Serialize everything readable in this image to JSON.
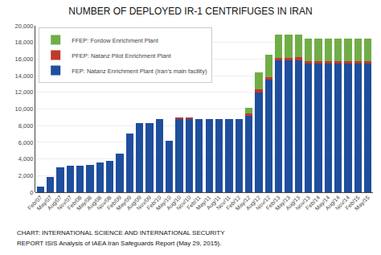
{
  "chart_data": {
    "type": "bar",
    "stacked": true,
    "title": "NUMBER OF DEPLOYED IR-1 CENTRIFUGES IN IRAN",
    "categories": [
      "Feb/07",
      "May/07",
      "Aug/07",
      "Nov/07",
      "Feb/08",
      "May/08",
      "Aug/08",
      "Nov/08",
      "Feb/09",
      "May/09",
      "Aug/09",
      "Nov/09",
      "Feb/10",
      "May/10",
      "Aug/10",
      "Nov/10",
      "Feb/11",
      "May/11",
      "Aug/11",
      "Nov/11",
      "Feb/12",
      "May/12",
      "Aug/12",
      "Nov/12",
      "Feb/13",
      "May/13",
      "Aug/13",
      "Nov/13",
      "Feb/14",
      "May/14",
      "Aug/14",
      "Nov/14",
      "Feb/15",
      "May/15"
    ],
    "series": [
      {
        "name": "FEP: Natanz Enrichment Plant (Iran’s main facility)",
        "color": "#1F4E9C",
        "values": [
          656,
          1820,
          2952,
          3148,
          3148,
          3240,
          3572,
          3792,
          4592,
          7052,
          8308,
          8308,
          8808,
          6208,
          8808,
          8808,
          8808,
          8808,
          8808,
          8808,
          8808,
          9156,
          12000,
          13528,
          15856,
          15856,
          15864,
          15416,
          15416,
          15416,
          15416,
          15416,
          15416,
          15416
        ]
      },
      {
        "name": "PFEP: Natanz Pilot Enrichment Plant",
        "color": "#C0392B",
        "values": [
          0,
          0,
          0,
          0,
          0,
          0,
          0,
          0,
          0,
          0,
          0,
          0,
          0,
          0,
          164,
          164,
          0,
          0,
          0,
          0,
          0,
          328,
          328,
          328,
          328,
          328,
          328,
          328,
          328,
          328,
          328,
          328,
          328,
          328
        ]
      },
      {
        "name": "FFEP: Fordow Enrichment Plant",
        "color": "#70AD47",
        "values": [
          0,
          0,
          0,
          0,
          0,
          0,
          0,
          0,
          0,
          0,
          0,
          0,
          0,
          0,
          0,
          0,
          0,
          0,
          0,
          0,
          0,
          696,
          2104,
          2710,
          2710,
          2710,
          2710,
          2710,
          2710,
          2710,
          2710,
          2710,
          2710,
          2710
        ]
      }
    ],
    "ylim": [
      0,
      20000
    ],
    "yticks": [
      0,
      {
        "value": 2000,
        "label": "2,000"
      },
      {
        "value": 4000,
        "label": "4,000"
      },
      {
        "value": 6000,
        "label": "6,000"
      },
      {
        "value": 8000,
        "label": "8,000"
      },
      {
        "value": 10000,
        "label": "10,000"
      },
      {
        "value": 12000,
        "label": "12,000"
      },
      {
        "value": 14000,
        "label": "14,000"
      },
      {
        "value": 16000,
        "label": "16,000"
      },
      {
        "value": 18000,
        "label": "18,000"
      },
      {
        "value": 20000,
        "label": "20,000"
      }
    ],
    "grid": true,
    "legend": "upper left",
    "annotations": [
      "CHART: INTERNATIONAL SCIENCE AND INTERNATIONAL SECURITY",
      "REPORT ISIS Analysis of IAEA Iran Safeguards Report (May 29, 2015)."
    ]
  }
}
